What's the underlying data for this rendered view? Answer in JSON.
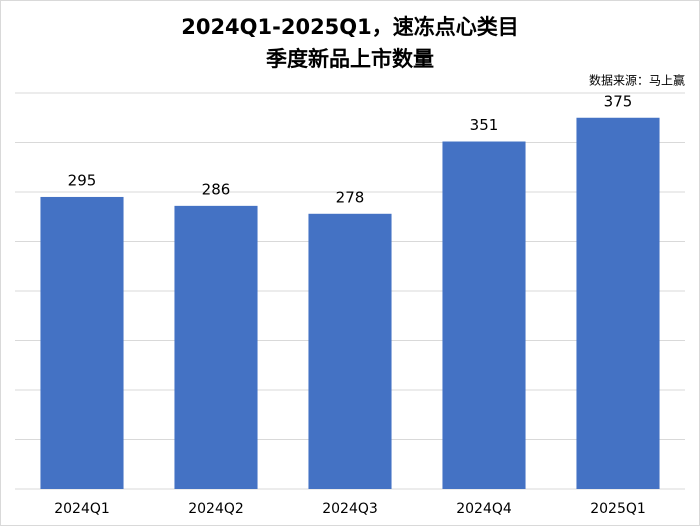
{
  "chart_data": {
    "type": "bar",
    "title": [
      "2024Q1-2025Q1，速冻点心类目",
      "季度新品上市数量"
    ],
    "source": "数据来源：马上赢",
    "categories": [
      "2024Q1",
      "2024Q2",
      "2024Q3",
      "2024Q4",
      "2025Q1"
    ],
    "values": [
      295,
      286,
      278,
      351,
      375
    ],
    "color": "#4472c4",
    "ylim": [
      0,
      400
    ],
    "yticks": [
      0,
      50,
      100,
      150,
      200,
      250,
      300,
      350,
      400
    ],
    "grid": true,
    "data_labels": true
  }
}
